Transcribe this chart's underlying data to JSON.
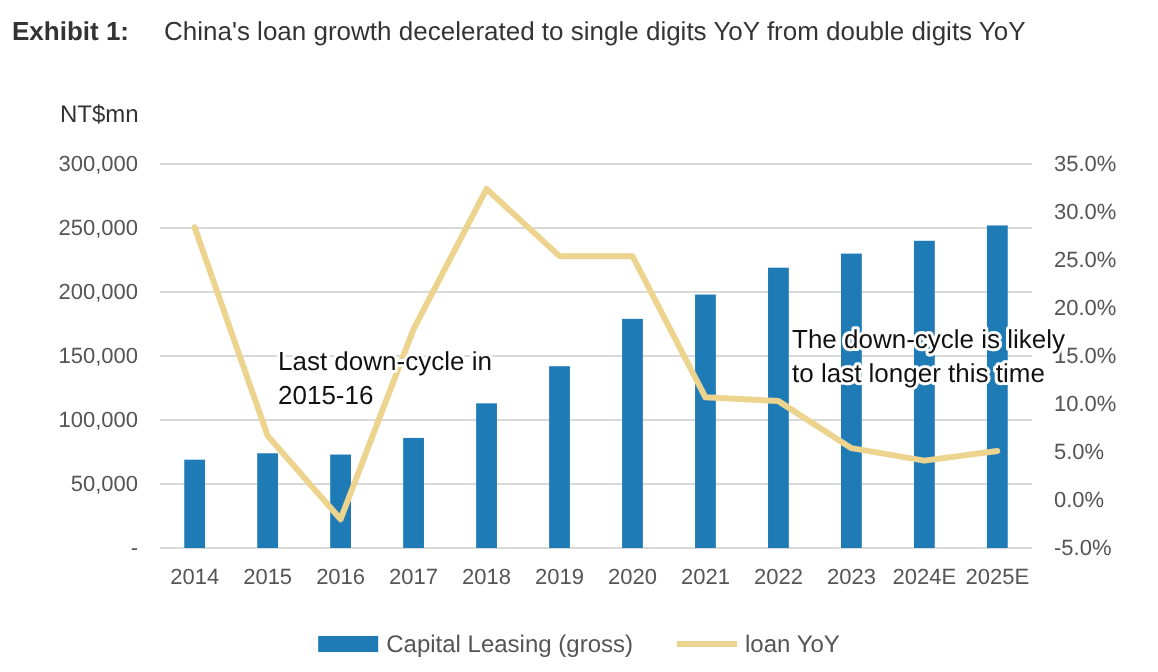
{
  "chart_data": {
    "type": "bar",
    "title": "Exhibit 1:",
    "subtitle": "China's loan growth decelerated to single digits YoY from double digits YoY",
    "ylabel": "NT$mn",
    "categories": [
      "2014",
      "2015",
      "2016",
      "2017",
      "2018",
      "2019",
      "2020",
      "2021",
      "2022",
      "2023",
      "2024E",
      "2025E"
    ],
    "series": [
      {
        "name": "Capital Leasing (gross)",
        "color": "#1f7bb6",
        "values": [
          69000,
          74000,
          73000,
          86000,
          113000,
          142000,
          179000,
          198000,
          219000,
          230000,
          240000,
          252000
        ]
      },
      {
        "name": "loan YoY",
        "type": "line",
        "axis": "y2",
        "color": "#ecd38e",
        "values": [
          28.4,
          6.7,
          -2.0,
          17.8,
          32.4,
          25.4,
          25.4,
          10.7,
          10.3,
          5.4,
          4.1,
          5.1
        ]
      }
    ],
    "ylim": [
      0,
      300000
    ],
    "yticks": [
      {
        "value": 0,
        "label": "-"
      },
      {
        "value": 50000,
        "label": "50,000"
      },
      {
        "value": 100000,
        "label": "100,000"
      },
      {
        "value": 150000,
        "label": "150,000"
      },
      {
        "value": 200000,
        "label": "200,000"
      },
      {
        "value": 250000,
        "label": "250,000"
      },
      {
        "value": 300000,
        "label": "300,000"
      }
    ],
    "y2lim": [
      -5,
      35
    ],
    "y2ticks": [
      {
        "value": -5,
        "label": "-5.0%"
      },
      {
        "value": 0,
        "label": "0.0%"
      },
      {
        "value": 5,
        "label": "5.0%"
      },
      {
        "value": 10,
        "label": "10.0%"
      },
      {
        "value": 15,
        "label": "15.0%"
      },
      {
        "value": 20,
        "label": "20.0%"
      },
      {
        "value": 25,
        "label": "25.0%"
      },
      {
        "value": 30,
        "label": "30.0%"
      },
      {
        "value": 35,
        "label": "35.0%"
      }
    ],
    "grid": "y",
    "legend": "bottom",
    "annotations": [
      "Last down-cycle in 2015-16",
      "The down-cycle is likely to last longer this time"
    ]
  }
}
